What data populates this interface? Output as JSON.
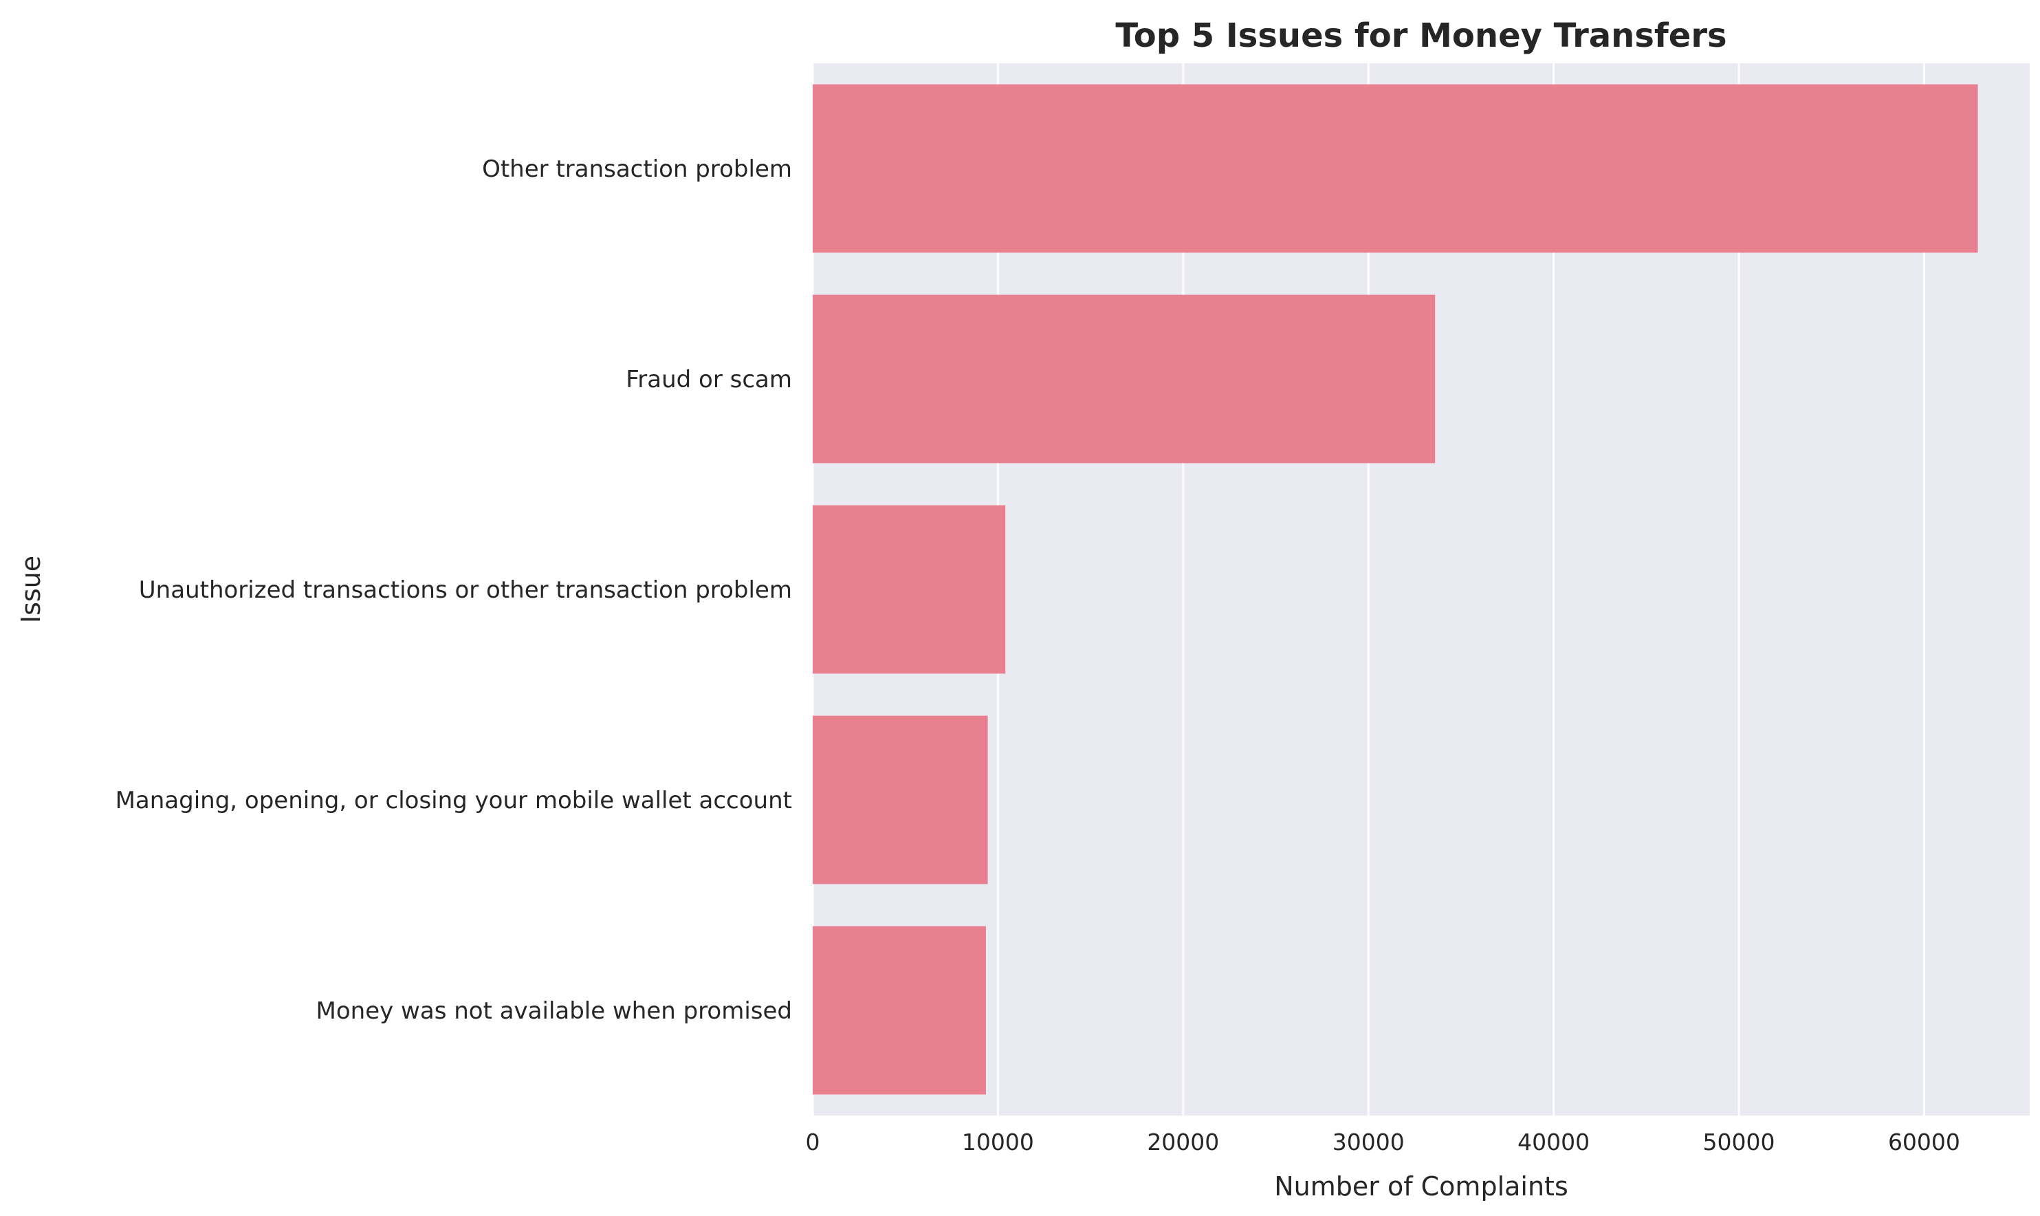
{
  "chart_data": {
    "type": "bar",
    "orientation": "horizontal",
    "title": "Top 5 Issues for Money Transfers",
    "xlabel": "Number of Complaints",
    "ylabel": "Issue",
    "categories": [
      "Other transaction problem",
      "Fraud or scam",
      "Unauthorized transactions or other transaction problem",
      "Managing, opening, or closing your mobile wallet account",
      "Money was not available when promised"
    ],
    "values": [
      62900,
      33600,
      10400,
      9450,
      9350
    ],
    "xlim": [
      0,
      65700
    ],
    "xticks": [
      0,
      10000,
      20000,
      30000,
      40000,
      50000,
      60000
    ],
    "grid": true,
    "bar_color": "#e8808f",
    "background_color": "#eaeaf2"
  }
}
